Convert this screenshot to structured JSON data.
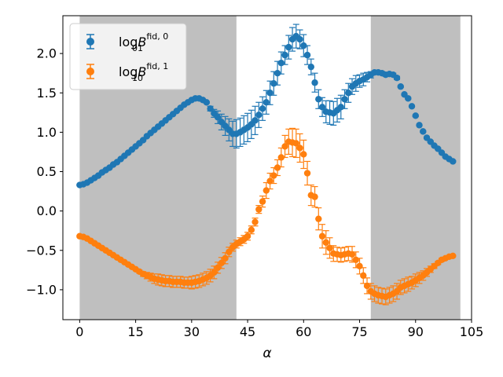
{
  "chart_data": {
    "type": "scatter",
    "xlabel": "α",
    "ylabel": "",
    "xlim": [
      -4.5,
      105
    ],
    "ylim": [
      -1.38,
      2.48
    ],
    "xticks": [
      "0",
      "15",
      "30",
      "45",
      "60",
      "75",
      "90",
      "105"
    ],
    "yticks": [
      "−1.0",
      "−0.5",
      "0.0",
      "0.5",
      "1.0",
      "1.5",
      "2.0"
    ],
    "shaded_regions": [
      [
        0,
        42
      ],
      [
        78,
        102
      ]
    ],
    "legend": {
      "position": "top-left",
      "entries": [
        {
          "base": "log",
          "var": "B",
          "sub": "01",
          "sup": "fid, 0"
        },
        {
          "base": "log",
          "var": "B",
          "sub": "10",
          "sup": "fid, 1"
        }
      ]
    },
    "series": [
      {
        "color": "#1f77b4",
        "points": [
          [
            0,
            0.33,
            0.01
          ],
          [
            1,
            0.34,
            0.01
          ],
          [
            2,
            0.36,
            0.01
          ],
          [
            3,
            0.39,
            0.01
          ],
          [
            4,
            0.42,
            0.01
          ],
          [
            5,
            0.45,
            0.01
          ],
          [
            6,
            0.49,
            0.01
          ],
          [
            7,
            0.52,
            0.01
          ],
          [
            8,
            0.55,
            0.01
          ],
          [
            9,
            0.59,
            0.01
          ],
          [
            10,
            0.62,
            0.01
          ],
          [
            11,
            0.66,
            0.01
          ],
          [
            12,
            0.7,
            0.01
          ],
          [
            13,
            0.74,
            0.01
          ],
          [
            14,
            0.78,
            0.01
          ],
          [
            15,
            0.82,
            0.01
          ],
          [
            16,
            0.86,
            0.01
          ],
          [
            17,
            0.9,
            0.01
          ],
          [
            18,
            0.95,
            0.01
          ],
          [
            19,
            0.99,
            0.01
          ],
          [
            20,
            1.03,
            0.01
          ],
          [
            21,
            1.07,
            0.01
          ],
          [
            22,
            1.11,
            0.01
          ],
          [
            23,
            1.15,
            0.01
          ],
          [
            24,
            1.19,
            0.01
          ],
          [
            25,
            1.23,
            0.01
          ],
          [
            26,
            1.27,
            0.01
          ],
          [
            27,
            1.31,
            0.01
          ],
          [
            28,
            1.35,
            0.01
          ],
          [
            29,
            1.38,
            0.01
          ],
          [
            30,
            1.41,
            0.01
          ],
          [
            31,
            1.43,
            0.01
          ],
          [
            32,
            1.43,
            0.01
          ],
          [
            33,
            1.41,
            0.01
          ],
          [
            34,
            1.38,
            0.01
          ],
          [
            35,
            1.3,
            0.03
          ],
          [
            36,
            1.24,
            0.05
          ],
          [
            37,
            1.19,
            0.08
          ],
          [
            38,
            1.13,
            0.1
          ],
          [
            39,
            1.08,
            0.12
          ],
          [
            40,
            1.03,
            0.14
          ],
          [
            41,
            0.98,
            0.16
          ],
          [
            42,
            0.98,
            0.18
          ],
          [
            43,
            1.0,
            0.18
          ],
          [
            44,
            1.03,
            0.18
          ],
          [
            45,
            1.06,
            0.18
          ],
          [
            46,
            1.1,
            0.18
          ],
          [
            47,
            1.15,
            0.18
          ],
          [
            48,
            1.22,
            0.16
          ],
          [
            49,
            1.3,
            0.15
          ],
          [
            50,
            1.38,
            0.15
          ],
          [
            51,
            1.5,
            0.15
          ],
          [
            52,
            1.62,
            0.15
          ],
          [
            53,
            1.75,
            0.15
          ],
          [
            54,
            1.88,
            0.14
          ],
          [
            55,
            1.98,
            0.12
          ],
          [
            56,
            2.08,
            0.15
          ],
          [
            57,
            2.18,
            0.15
          ],
          [
            58,
            2.22,
            0.15
          ],
          [
            59,
            2.18,
            0.12
          ],
          [
            60,
            2.1,
            0.14
          ],
          [
            61,
            1.98,
            0.12
          ],
          [
            62,
            1.83,
            0.1
          ],
          [
            63,
            1.63,
            0.12
          ],
          [
            64,
            1.42,
            0.12
          ],
          [
            65,
            1.32,
            0.12
          ],
          [
            66,
            1.26,
            0.14
          ],
          [
            67,
            1.25,
            0.15
          ],
          [
            68,
            1.24,
            0.15
          ],
          [
            69,
            1.28,
            0.15
          ],
          [
            70,
            1.32,
            0.15
          ],
          [
            71,
            1.42,
            0.12
          ],
          [
            72,
            1.5,
            0.12
          ],
          [
            73,
            1.58,
            0.1
          ],
          [
            74,
            1.62,
            0.1
          ],
          [
            75,
            1.65,
            0.08
          ],
          [
            76,
            1.67,
            0.08
          ],
          [
            77,
            1.7,
            0.06
          ],
          [
            78,
            1.73,
            0.04
          ],
          [
            79,
            1.76,
            0.02
          ],
          [
            80,
            1.76,
            0.02
          ],
          [
            81,
            1.75,
            0.02
          ],
          [
            82,
            1.73,
            0.02
          ],
          [
            83,
            1.74,
            0.02
          ],
          [
            84,
            1.73,
            0.02
          ],
          [
            85,
            1.69,
            0.02
          ],
          [
            86,
            1.58,
            0.01
          ],
          [
            87,
            1.48,
            0.01
          ],
          [
            88,
            1.43,
            0.01
          ],
          [
            89,
            1.33,
            0.01
          ],
          [
            90,
            1.21,
            0.01
          ],
          [
            91,
            1.09,
            0.01
          ],
          [
            92,
            1.01,
            0.01
          ],
          [
            93,
            0.93,
            0.01
          ],
          [
            94,
            0.88,
            0.01
          ],
          [
            95,
            0.83,
            0.01
          ],
          [
            96,
            0.79,
            0.01
          ],
          [
            97,
            0.74,
            0.01
          ],
          [
            98,
            0.69,
            0.01
          ],
          [
            99,
            0.66,
            0.01
          ],
          [
            100,
            0.63,
            0.01
          ]
        ]
      },
      {
        "color": "#ff7f0e",
        "points": [
          [
            0,
            -0.32,
            0.01
          ],
          [
            1,
            -0.33,
            0.01
          ],
          [
            2,
            -0.35,
            0.01
          ],
          [
            3,
            -0.38,
            0.01
          ],
          [
            4,
            -0.41,
            0.01
          ],
          [
            5,
            -0.44,
            0.01
          ],
          [
            6,
            -0.47,
            0.01
          ],
          [
            7,
            -0.5,
            0.01
          ],
          [
            8,
            -0.53,
            0.01
          ],
          [
            9,
            -0.56,
            0.01
          ],
          [
            10,
            -0.59,
            0.01
          ],
          [
            11,
            -0.62,
            0.01
          ],
          [
            12,
            -0.65,
            0.01
          ],
          [
            13,
            -0.68,
            0.01
          ],
          [
            14,
            -0.71,
            0.01
          ],
          [
            15,
            -0.74,
            0.01
          ],
          [
            16,
            -0.77,
            0.02
          ],
          [
            17,
            -0.8,
            0.03
          ],
          [
            18,
            -0.82,
            0.04
          ],
          [
            19,
            -0.84,
            0.05
          ],
          [
            20,
            -0.86,
            0.06
          ],
          [
            21,
            -0.87,
            0.07
          ],
          [
            22,
            -0.88,
            0.07
          ],
          [
            23,
            -0.89,
            0.07
          ],
          [
            24,
            -0.89,
            0.07
          ],
          [
            25,
            -0.9,
            0.07
          ],
          [
            26,
            -0.9,
            0.07
          ],
          [
            27,
            -0.9,
            0.07
          ],
          [
            28,
            -0.91,
            0.07
          ],
          [
            29,
            -0.91,
            0.07
          ],
          [
            30,
            -0.91,
            0.08
          ],
          [
            31,
            -0.9,
            0.08
          ],
          [
            32,
            -0.89,
            0.08
          ],
          [
            33,
            -0.87,
            0.08
          ],
          [
            34,
            -0.85,
            0.08
          ],
          [
            35,
            -0.82,
            0.08
          ],
          [
            36,
            -0.78,
            0.08
          ],
          [
            37,
            -0.72,
            0.07
          ],
          [
            38,
            -0.66,
            0.07
          ],
          [
            39,
            -0.6,
            0.07
          ],
          [
            40,
            -0.52,
            0.06
          ],
          [
            41,
            -0.46,
            0.05
          ],
          [
            42,
            -0.42,
            0.05
          ],
          [
            43,
            -0.39,
            0.05
          ],
          [
            44,
            -0.36,
            0.05
          ],
          [
            45,
            -0.32,
            0.05
          ],
          [
            46,
            -0.24,
            0.05
          ],
          [
            47,
            -0.14,
            0.05
          ],
          [
            48,
            0.02,
            0.05
          ],
          [
            49,
            0.12,
            0.07
          ],
          [
            50,
            0.26,
            0.1
          ],
          [
            51,
            0.38,
            0.1
          ],
          [
            52,
            0.45,
            0.1
          ],
          [
            53,
            0.55,
            0.1
          ],
          [
            54,
            0.68,
            0.12
          ],
          [
            55,
            0.82,
            0.14
          ],
          [
            56,
            0.88,
            0.16
          ],
          [
            57,
            0.87,
            0.18
          ],
          [
            58,
            0.86,
            0.18
          ],
          [
            59,
            0.8,
            0.18
          ],
          [
            60,
            0.72,
            0.18
          ],
          [
            61,
            0.48,
            0.15
          ],
          [
            62,
            0.2,
            0.13
          ],
          [
            63,
            0.18,
            0.13
          ],
          [
            64,
            -0.1,
            0.14
          ],
          [
            65,
            -0.32,
            0.15
          ],
          [
            66,
            -0.4,
            0.15
          ],
          [
            67,
            -0.47,
            0.13
          ],
          [
            68,
            -0.54,
            0.1
          ],
          [
            69,
            -0.55,
            0.09
          ],
          [
            70,
            -0.56,
            0.09
          ],
          [
            71,
            -0.55,
            0.09
          ],
          [
            72,
            -0.54,
            0.09
          ],
          [
            73,
            -0.55,
            0.1
          ],
          [
            74,
            -0.62,
            0.1
          ],
          [
            75,
            -0.7,
            0.1
          ],
          [
            76,
            -0.82,
            0.1
          ],
          [
            77,
            -0.95,
            0.1
          ],
          [
            78,
            -1.02,
            0.1
          ],
          [
            79,
            -1.05,
            0.1
          ],
          [
            80,
            -1.07,
            0.1
          ],
          [
            81,
            -1.08,
            0.1
          ],
          [
            82,
            -1.09,
            0.1
          ],
          [
            83,
            -1.07,
            0.1
          ],
          [
            84,
            -1.05,
            0.1
          ],
          [
            85,
            -1.02,
            0.1
          ],
          [
            86,
            -0.97,
            0.09
          ],
          [
            87,
            -0.95,
            0.09
          ],
          [
            88,
            -0.93,
            0.09
          ],
          [
            89,
            -0.91,
            0.08
          ],
          [
            90,
            -0.88,
            0.08
          ],
          [
            91,
            -0.85,
            0.07
          ],
          [
            92,
            -0.82,
            0.06
          ],
          [
            93,
            -0.78,
            0.05
          ],
          [
            94,
            -0.74,
            0.04
          ],
          [
            95,
            -0.7,
            0.03
          ],
          [
            96,
            -0.66,
            0.02
          ],
          [
            97,
            -0.62,
            0.02
          ],
          [
            98,
            -0.6,
            0.01
          ],
          [
            99,
            -0.58,
            0.01
          ],
          [
            100,
            -0.57,
            0.01
          ]
        ]
      }
    ]
  }
}
